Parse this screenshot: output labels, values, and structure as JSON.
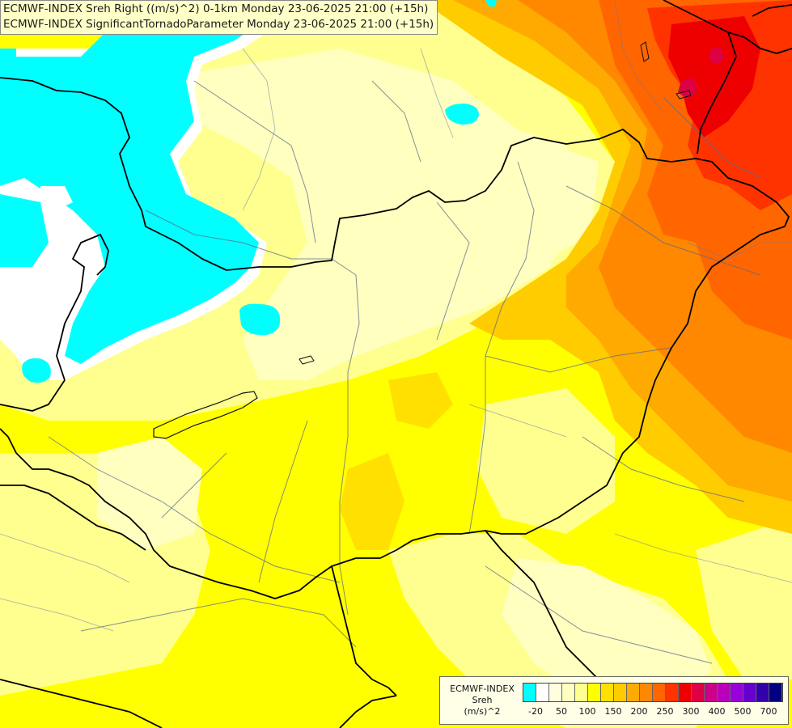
{
  "titles": [
    "ECMWF-INDEX Sreh Right ((m/s)^2) 0-1km Monday 23-06-2025 21:00 (+15h)",
    "ECMWF-INDEX SignificantTornadoParameter Monday 23-06-2025 21:00 (+15h)"
  ],
  "legend": {
    "title_lines": [
      "ECMWF-INDEX",
      "Sreh",
      "(m/s)^2"
    ],
    "colors": [
      "#00ffff",
      "#ffffff",
      "#ffffe0",
      "#ffffc0",
      "#ffff90",
      "#ffff00",
      "#ffe000",
      "#ffcc00",
      "#ffaa00",
      "#ff8800",
      "#ff6600",
      "#ff3300",
      "#ee0000",
      "#dd0044",
      "#cc0088",
      "#bb00bb",
      "#9900dd",
      "#6600cc",
      "#3300aa",
      "#000080"
    ],
    "ticks": [
      {
        "value": "-20",
        "index": 1
      },
      {
        "value": "50",
        "index": 3
      },
      {
        "value": "100",
        "index": 5
      },
      {
        "value": "150",
        "index": 7
      },
      {
        "value": "200",
        "index": 9
      },
      {
        "value": "250",
        "index": 11
      },
      {
        "value": "300",
        "index": 13
      },
      {
        "value": "400",
        "index": 15
      },
      {
        "value": "500",
        "index": 17
      },
      {
        "value": "700",
        "index": 19
      }
    ]
  },
  "map_colors": {
    "cyan": "#00ffff",
    "white": "#ffffff",
    "pale": "#ffffc0",
    "lightyellow": "#ffff90",
    "yellow": "#ffff00",
    "gold": "#ffe000",
    "orange1": "#ffcc00",
    "orange2": "#ffaa00",
    "orange3": "#ff8800",
    "redorange": "#ff6600",
    "red": "#ff3300",
    "crimson": "#ee0000",
    "magenta": "#dd0044"
  }
}
